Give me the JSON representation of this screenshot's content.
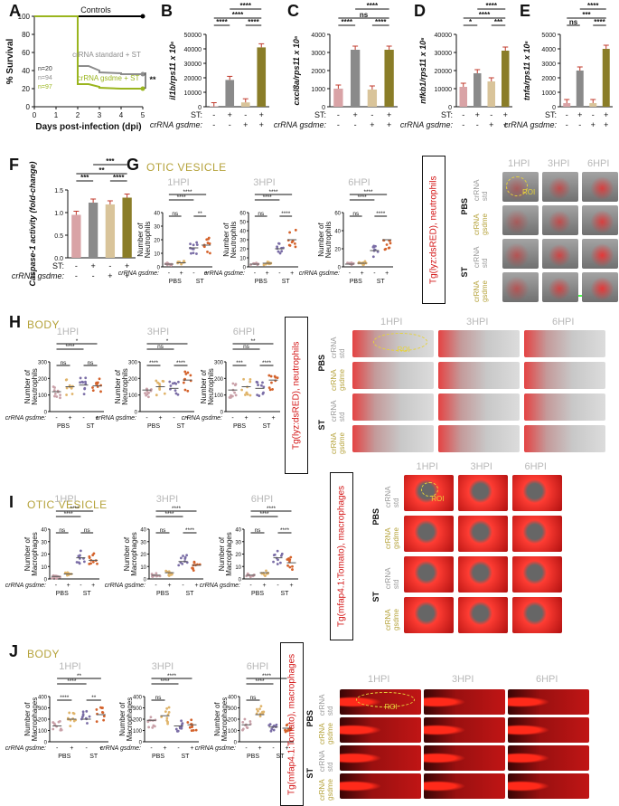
{
  "panel_letters": {
    "A": "A",
    "B": "B",
    "C": "C",
    "D": "D",
    "E": "E",
    "F": "F",
    "G": "G",
    "H": "H",
    "I": "I",
    "J": "J"
  },
  "sections": {
    "G": "OTIC VESICLE",
    "H": "BODY",
    "I": "OTIC VESICLE",
    "J": "BODY"
  },
  "hpi": {
    "h1": "1HPI",
    "h3": "3HPI",
    "h6": "6HPI"
  },
  "common": {
    "st": "ST:",
    "crrna_gsdme": "crRNA gsdme:",
    "minus": "-",
    "plus": "+",
    "pbs": "PBS",
    "st_group": "ST",
    "ns": "ns",
    "stars4": "****",
    "stars3": "***",
    "stars2": "**",
    "stars1": "*",
    "roi": "ROI",
    "crrna": "crRNA",
    "std": "std",
    "gsdme": "gsdme"
  },
  "reporters": {
    "neutrophils": "Tg(lyz:dsRED), neutrophils",
    "macrophages": "Tg(mfap4.1:Tomato), macrophages"
  },
  "colors": {
    "control": "#000000",
    "standard": "#8c8c8c",
    "gsdme": "#9ab51e",
    "bar_light": "#d9a3a6",
    "bar_grey": "#8a8a8a",
    "bar_tan": "#d9c49a",
    "bar_olive": "#8a7d28",
    "red": "#e02020",
    "gold": "#b5a23a"
  },
  "chart_data": [
    {
      "type": "line",
      "panel": "A",
      "title": "",
      "xlabel": "Days post-infection (dpi)",
      "ylabel": "% Survival",
      "x_ticks": [
        0,
        1,
        2,
        3,
        4,
        5
      ],
      "y_ticks": [
        0,
        20,
        40,
        60,
        80,
        100
      ],
      "ylim": [
        0,
        100
      ],
      "series": [
        {
          "name": "Controls",
          "x": [
            0,
            5
          ],
          "y": [
            100,
            100
          ]
        },
        {
          "name": "crRNA standard + ST",
          "x": [
            0,
            2,
            2,
            2.5,
            3,
            3,
            4,
            4,
            5
          ],
          "y": [
            100,
            100,
            45,
            45,
            40,
            38,
            37,
            36,
            36
          ]
        },
        {
          "name": "crRNA gsdme + ST",
          "x": [
            0,
            2,
            2,
            2.5,
            3,
            3,
            4,
            5
          ],
          "y": [
            100,
            100,
            25,
            25,
            22,
            21,
            20,
            20
          ]
        }
      ],
      "legend_n": [
        "n=20",
        "n=94",
        "n=97"
      ],
      "sig": "**"
    },
    {
      "type": "bar",
      "panel": "B",
      "ylabel": "il1b/rps11 x 10⁶",
      "y_ticks": [
        0,
        10000,
        20000,
        30000,
        40000,
        50000
      ],
      "ylim": [
        0,
        50000
      ],
      "values": [
        300,
        18500,
        3000,
        41000
      ],
      "sig": [
        "****",
        "****",
        "****",
        "****"
      ]
    },
    {
      "type": "bar",
      "panel": "C",
      "ylabel": "cxcl8a/rps11 x 10⁶",
      "y_ticks": [
        0,
        1000,
        2000,
        3000,
        4000
      ],
      "ylim": [
        0,
        4000
      ],
      "values": [
        1000,
        3150,
        950,
        3150
      ],
      "sig": [
        "ns",
        "****",
        "****",
        "****"
      ]
    },
    {
      "type": "bar",
      "panel": "D",
      "ylabel": "nfkb1/rps11 x 10⁶",
      "y_ticks": [
        0,
        10000,
        20000,
        30000,
        40000
      ],
      "ylim": [
        0,
        40000
      ],
      "values": [
        11000,
        18500,
        14000,
        31000
      ],
      "sig": [
        "****",
        "*",
        "***",
        "****"
      ]
    },
    {
      "type": "bar",
      "panel": "E",
      "ylabel": "tnfa/rps11 x 10⁶",
      "y_ticks": [
        0,
        1000,
        2000,
        3000,
        4000,
        5000
      ],
      "ylim": [
        0,
        5000
      ],
      "values": [
        250,
        2500,
        250,
        4000
      ],
      "sig": [
        "***",
        "ns",
        "****",
        "****"
      ]
    },
    {
      "type": "bar",
      "panel": "F",
      "ylabel": "Caspase-1 activity (fold-change)",
      "y_ticks": [
        0.0,
        0.5,
        1.0,
        1.5
      ],
      "ylim": [
        0,
        1.5
      ],
      "values": [
        0.95,
        1.22,
        1.18,
        1.33
      ],
      "sig": [
        "**",
        "***",
        "****",
        "***"
      ]
    },
    {
      "type": "scatter",
      "panel": "G",
      "ylabel": "Number of Neutrophils",
      "groups": [
        "PBS",
        "ST"
      ],
      "subpanels": [
        {
          "hpi": "1HPI",
          "y_ticks": [
            0,
            10,
            20,
            30,
            40
          ],
          "ylim": [
            0,
            40
          ],
          "means": [
            2,
            3,
            14,
            16
          ],
          "sig": [
            "****",
            "****",
            "ns",
            "**"
          ]
        },
        {
          "hpi": "3HPI",
          "y_ticks": [
            0,
            10,
            20,
            30,
            40,
            50,
            60
          ],
          "ylim": [
            0,
            60
          ],
          "means": [
            3,
            4,
            20,
            30
          ],
          "sig": [
            "****",
            "****",
            "ns",
            "****"
          ]
        },
        {
          "hpi": "6HPI",
          "y_ticks": [
            0,
            20,
            40,
            60
          ],
          "ylim": [
            0,
            60
          ],
          "means": [
            3,
            4,
            18,
            30
          ],
          "sig": [
            "****",
            "****",
            "ns",
            "****"
          ]
        }
      ]
    },
    {
      "type": "scatter",
      "panel": "H",
      "ylabel": "Number of Neutrophils",
      "groups": [
        "PBS",
        "ST"
      ],
      "subpanels": [
        {
          "hpi": "1HPI",
          "y_ticks": [
            0,
            100,
            200,
            300
          ],
          "ylim": [
            0,
            300
          ],
          "means": [
            120,
            150,
            160,
            155
          ],
          "sig": [
            "*",
            "****",
            "ns",
            "ns"
          ]
        },
        {
          "hpi": "3HPI",
          "y_ticks": [
            0,
            100,
            200,
            300
          ],
          "ylim": [
            0,
            300
          ],
          "means": [
            130,
            150,
            140,
            190
          ],
          "sig": [
            "*",
            "ns",
            "****",
            "****"
          ]
        },
        {
          "hpi": "6HPI",
          "y_ticks": [
            0,
            100,
            200,
            300
          ],
          "ylim": [
            0,
            300
          ],
          "means": [
            130,
            150,
            140,
            190
          ],
          "sig": [
            "**",
            "ns",
            "***",
            "****"
          ]
        }
      ]
    },
    {
      "type": "scatter",
      "panel": "I",
      "ylabel": "Number of Macrophages",
      "groups": [
        "PBS",
        "ST"
      ],
      "subpanels": [
        {
          "hpi": "1HPI",
          "y_ticks": [
            0,
            10,
            20,
            30,
            40
          ],
          "ylim": [
            0,
            40
          ],
          "means": [
            2,
            4,
            17,
            15
          ],
          "sig": [
            "****",
            "****",
            "ns",
            "ns"
          ]
        },
        {
          "hpi": "3HPI",
          "y_ticks": [
            0,
            10,
            20,
            30,
            40
          ],
          "ylim": [
            0,
            40
          ],
          "means": [
            3,
            5,
            14,
            11
          ],
          "sig": [
            "****",
            "****",
            "ns",
            "****"
          ]
        },
        {
          "hpi": "6HPI",
          "y_ticks": [
            0,
            10,
            20,
            30,
            40
          ],
          "ylim": [
            0,
            40
          ],
          "means": [
            3,
            5,
            17,
            13
          ],
          "sig": [
            "****",
            "****",
            "ns",
            "****"
          ]
        }
      ]
    },
    {
      "type": "scatter",
      "panel": "J",
      "ylabel": "Number of Macrophages",
      "groups": [
        "PBS",
        "ST"
      ],
      "subpanels": [
        {
          "hpi": "1HPI",
          "y_ticks": [
            0,
            100,
            200,
            300,
            400
          ],
          "ylim": [
            0,
            400
          ],
          "means": [
            140,
            200,
            200,
            240
          ],
          "sig": [
            "**",
            "****",
            "****",
            "**"
          ]
        },
        {
          "hpi": "3HPI",
          "y_ticks": [
            0,
            100,
            200,
            300,
            400
          ],
          "ylim": [
            0,
            400
          ],
          "means": [
            190,
            230,
            140,
            150
          ],
          "sig": [
            "****",
            "****",
            "ns"
          ]
        },
        {
          "hpi": "6HPI",
          "y_ticks": [
            0,
            100,
            200,
            300,
            400
          ],
          "ylim": [
            0,
            400
          ],
          "means": [
            150,
            240,
            130,
            120
          ],
          "sig": [
            "****",
            "****",
            "ns"
          ]
        }
      ]
    }
  ]
}
